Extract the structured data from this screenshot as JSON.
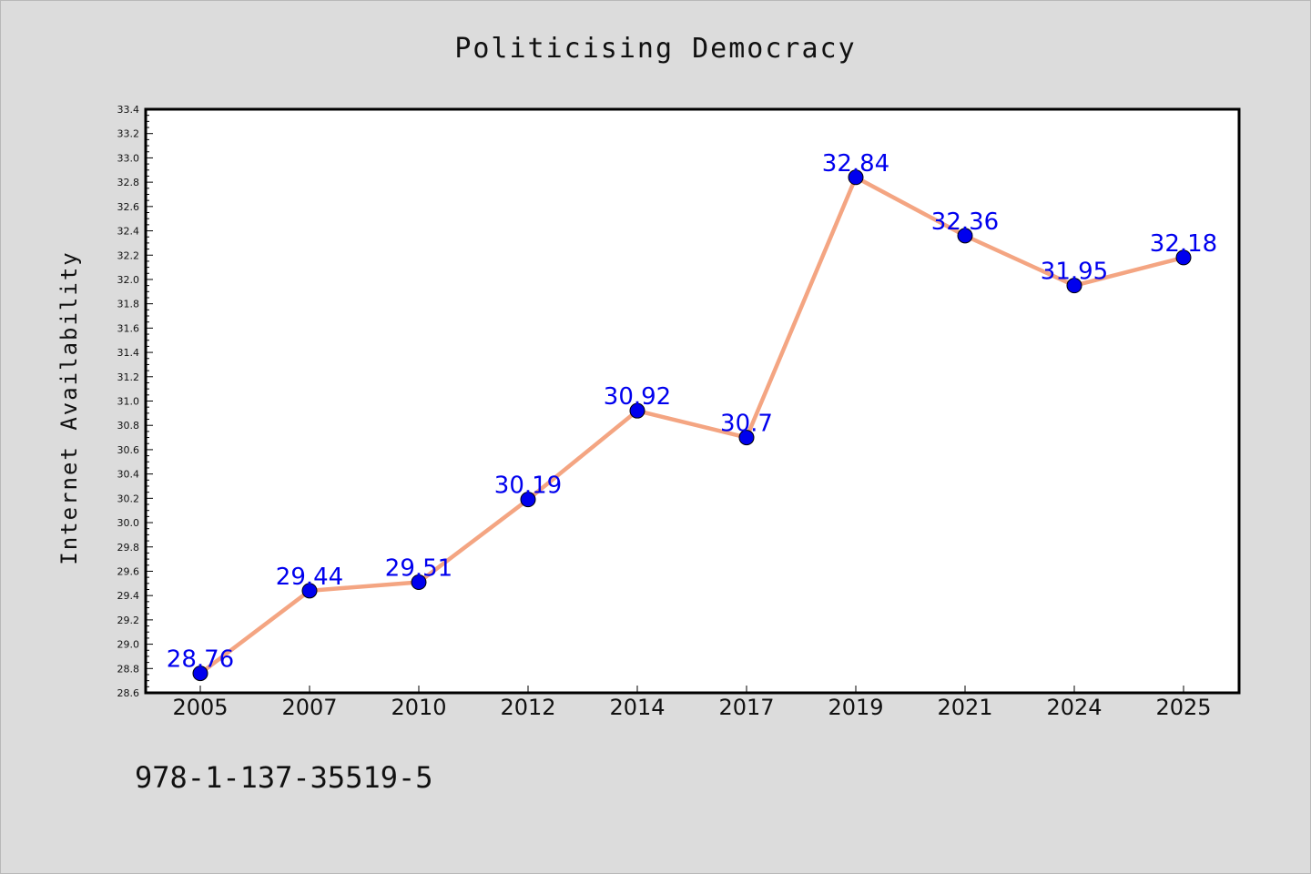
{
  "chart_data": {
    "type": "line",
    "title": "Politicising Democracy",
    "xlabel": "",
    "ylabel": "Internet Availability",
    "categories": [
      "2005",
      "2007",
      "2010",
      "2012",
      "2014",
      "2017",
      "2019",
      "2021",
      "2024",
      "2025"
    ],
    "series": [
      {
        "values": [
          28.76,
          29.44,
          29.51,
          30.19,
          30.92,
          30.7,
          32.84,
          32.36,
          31.95,
          32.18
        ],
        "labels": [
          "28.76",
          "29.44",
          "29.51",
          "30.19",
          "30.92",
          "30.7",
          "32.84",
          "32.36",
          "31.95",
          "32.18"
        ],
        "line_color": "#f4a582",
        "marker_color": "#0000ee"
      }
    ],
    "ylim": [
      28.6,
      33.4
    ],
    "yticks": [
      "28.6",
      "28.8",
      "29.0",
      "29.2",
      "29.4",
      "29.6",
      "29.8",
      "30.0",
      "30.2",
      "30.4",
      "30.6",
      "30.8",
      "31.0",
      "31.2",
      "31.4",
      "31.6",
      "31.8",
      "32.0",
      "32.2",
      "32.4",
      "32.6",
      "32.8",
      "33.0",
      "33.2",
      "33.4"
    ],
    "grid": false,
    "footnote": "978-1-137-35519-5"
  }
}
